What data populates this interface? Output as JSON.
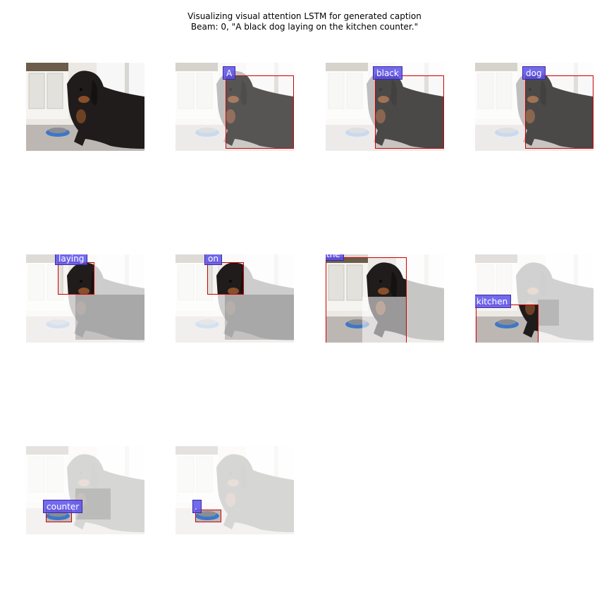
{
  "figure": {
    "title_line1": "Visualizing visual attention LSTM for generated caption",
    "title_line2": "Beam: 0, \"A black dog laying on the kitchen counter.\""
  },
  "steps": [
    {
      "word": ""
    },
    {
      "word": "A"
    },
    {
      "word": "black"
    },
    {
      "word": "dog"
    },
    {
      "word": "laying"
    },
    {
      "word": "on"
    },
    {
      "word": "the"
    },
    {
      "word": "kitchen"
    },
    {
      "word": "counter"
    },
    {
      "word": "."
    }
  ]
}
